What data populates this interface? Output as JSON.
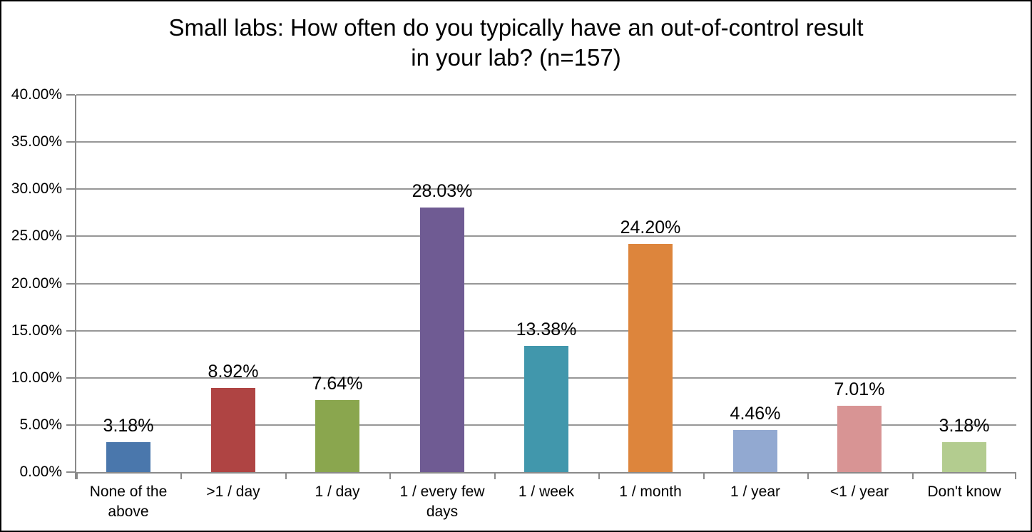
{
  "chart_data": {
    "type": "bar",
    "title": "Small labs: How often do you typically have an out-of-control result\nin your lab? (n=157)",
    "categories": [
      "None of the above",
      ">1 / day",
      "1 / day",
      "1 / every few days",
      "1 / week",
      "1 / month",
      "1 / year",
      "<1 / year",
      "Don't know"
    ],
    "values": [
      3.18,
      8.92,
      7.64,
      28.03,
      13.38,
      24.2,
      4.46,
      7.01,
      3.18
    ],
    "value_labels": [
      "3.18%",
      "8.92%",
      "7.64%",
      "28.03%",
      "13.38%",
      "24.20%",
      "4.46%",
      "7.01%",
      "3.18%"
    ],
    "bar_colors": [
      "#4a77ac",
      "#af4443",
      "#8aa64e",
      "#6f5b93",
      "#4197ac",
      "#dd853c",
      "#92a9d1",
      "#d89494",
      "#b3cc8f"
    ],
    "xlabel": "",
    "ylabel": "",
    "ylim": [
      0,
      40
    ],
    "ytick_step": 5,
    "ytick_labels": [
      "0.00%",
      "5.00%",
      "10.00%",
      "15.00%",
      "20.00%",
      "25.00%",
      "30.00%",
      "35.00%",
      "40.00%"
    ],
    "grid": true,
    "legend_position": "none"
  },
  "colors": {
    "gridline": "#979797",
    "axis": "#8a8a8a",
    "frame_border": "#000000",
    "background": "#ffffff",
    "text": "#000000"
  }
}
